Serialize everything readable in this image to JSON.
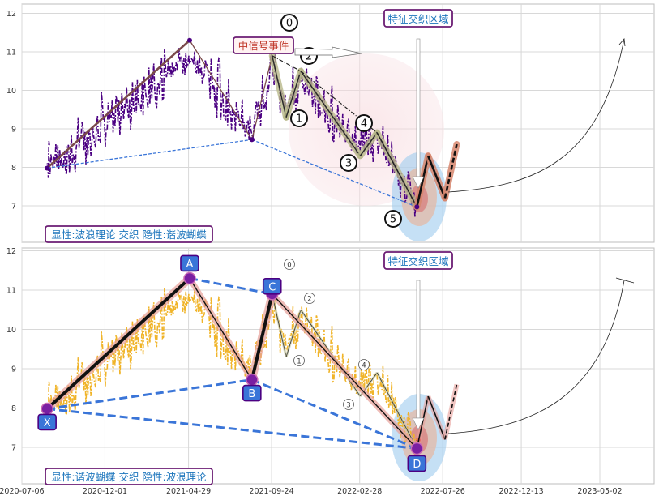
{
  "x_ticks": [
    "2020-07-06",
    "2020-12-01",
    "2021-04-29",
    "2021-09-24",
    "2022-02-28",
    "2022-07-26",
    "2022-12-13",
    "2023-05-02"
  ],
  "y_ticks": [
    "7",
    "8",
    "9",
    "10",
    "11",
    "12"
  ],
  "top": {
    "label_signal": "中信号事件",
    "label_region": "特征交织区域",
    "label_bottom": "显性:波浪理论 交织 隐性:谐波蝴蝶",
    "wave_labels": [
      "0",
      "1",
      "2",
      "3",
      "4",
      "5"
    ]
  },
  "bottom": {
    "label_region": "特征交织区域",
    "label_bottom": "显性:谐波蝴蝶 交织 隐性:波浪理论",
    "point_labels": [
      "X",
      "A",
      "B",
      "C",
      "D"
    ],
    "wave_labels": [
      "0",
      "1",
      "2",
      "3",
      "4"
    ]
  },
  "colors": {
    "price_top": "#4b0082",
    "price_bottom": "#f0b429",
    "harmonic_blue": "#3a75d8",
    "label_blue": "#1c75bc",
    "box_border": "#4b0082",
    "signal_red": "#c0392b"
  },
  "chart_data": {
    "type": "line",
    "x_axis": "date",
    "ylim": [
      6.2,
      12.2
    ],
    "panels": [
      {
        "panel": "top",
        "pattern_points": [
          {
            "date": "2020-08-20",
            "y": 7.98
          },
          {
            "date": "2021-05-01",
            "y": 11.3
          },
          {
            "date": "2021-08-20",
            "y": 8.72
          },
          {
            "date": "2021-09-25",
            "y": 10.9
          },
          {
            "date": "2021-10-20",
            "y": 9.3
          },
          {
            "date": "2021-11-15",
            "y": 10.5
          },
          {
            "date": "2022-03-01",
            "y": 8.3
          },
          {
            "date": "2022-03-31",
            "y": 8.9
          },
          {
            "date": "2022-06-10",
            "y": 6.97
          }
        ],
        "projection": [
          {
            "date": "2022-06-10",
            "y": 6.97
          },
          {
            "date": "2022-06-30",
            "y": 8.3
          },
          {
            "date": "2022-07-30",
            "y": 7.2
          },
          {
            "date": "2022-08-20",
            "y": 8.6
          }
        ]
      },
      {
        "panel": "bottom",
        "pattern_points": [
          {
            "label": "X",
            "date": "2020-08-20",
            "y": 7.98
          },
          {
            "label": "A",
            "date": "2021-05-01",
            "y": 11.3
          },
          {
            "label": "B",
            "date": "2021-08-20",
            "y": 8.72
          },
          {
            "label": "C",
            "date": "2021-09-25",
            "y": 10.9
          },
          {
            "label": "D",
            "date": "2022-06-10",
            "y": 6.97
          }
        ]
      }
    ]
  }
}
